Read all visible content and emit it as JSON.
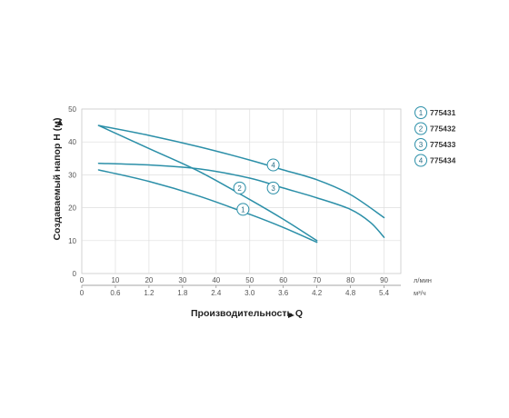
{
  "chart_data": {
    "type": "line",
    "xlabel": "Производительность Q",
    "ylabel": "Создаваемый напор H (м)",
    "x_unit": "л/мин",
    "x2_unit": "м³/ч",
    "xlim": [
      0,
      95
    ],
    "ylim": [
      0,
      50
    ],
    "x_ticks": [
      0,
      10,
      20,
      30,
      40,
      50,
      60,
      70,
      80,
      90
    ],
    "x2_ticks": [
      "0",
      "0.6",
      "1.2",
      "1.8",
      "2.4",
      "3.0",
      "3.6",
      "4.2",
      "4.8",
      "5.4"
    ],
    "y_ticks": [
      0,
      10,
      20,
      30,
      40,
      50
    ],
    "grid": true,
    "legend_position": "right",
    "series": [
      {
        "name": "775431",
        "label": "1",
        "color": "#2b8fa8",
        "x": [
          5,
          20,
          35,
          50,
          60,
          70
        ],
        "y": [
          31.5,
          28,
          23.5,
          18,
          14,
          9.5
        ]
      },
      {
        "name": "775432",
        "label": "2",
        "color": "#2b8fa8",
        "x": [
          5,
          20,
          35,
          50,
          60,
          70
        ],
        "y": [
          45,
          38,
          31,
          22.5,
          16.5,
          10
        ]
      },
      {
        "name": "775433",
        "label": "3",
        "color": "#2b8fa8",
        "x": [
          5,
          20,
          35,
          50,
          60,
          70,
          80,
          86,
          90
        ],
        "y": [
          33.5,
          33,
          31.8,
          29,
          26,
          23,
          19.5,
          15.5,
          11
        ]
      },
      {
        "name": "775434",
        "label": "4",
        "color": "#2b8fa8",
        "x": [
          5,
          20,
          35,
          50,
          60,
          70,
          80,
          90
        ],
        "y": [
          45,
          42,
          38.5,
          34.5,
          31.5,
          28.5,
          24,
          17
        ]
      }
    ],
    "curve_labels": [
      {
        "label": "1",
        "x": 48,
        "y": 19.5
      },
      {
        "label": "2",
        "x": 47,
        "y": 26
      },
      {
        "label": "3",
        "x": 57,
        "y": 26
      },
      {
        "label": "4",
        "x": 57,
        "y": 33
      }
    ]
  }
}
